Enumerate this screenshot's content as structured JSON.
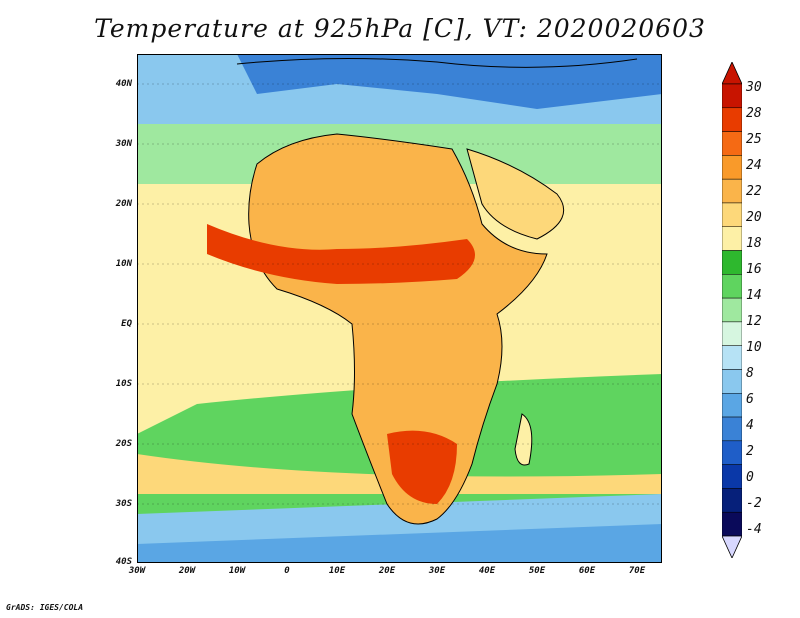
{
  "title": "Temperature at 925hPa [C], VT: 2020020603",
  "credit": "GrADS: IGES/COLA",
  "lat_labels": [
    "40N",
    "30N",
    "20N",
    "10N",
    "EQ",
    "10S",
    "20S",
    "30S",
    "40S"
  ],
  "lon_labels": [
    "30W",
    "20W",
    "10W",
    "0",
    "10E",
    "20E",
    "30E",
    "40E",
    "50E",
    "60E",
    "70E"
  ],
  "colorbar": {
    "labels": [
      "30",
      "28",
      "25",
      "24",
      "22",
      "20",
      "18",
      "16",
      "14",
      "12",
      "10",
      "8",
      "6",
      "4",
      "2",
      "0",
      "-2",
      "-4"
    ],
    "colors": [
      "#c81400",
      "#e83c00",
      "#f56a14",
      "#f99a2a",
      "#fab44a",
      "#fdd87a",
      "#fdf0a6",
      "#2eb82e",
      "#5fd45f",
      "#9fe89f",
      "#d6f6e0",
      "#b6e2f5",
      "#8ac8ee",
      "#5aa6e4",
      "#3a82d6",
      "#1f5ec8",
      "#0a38a8",
      "#06207a",
      "#0a0a5a"
    ],
    "max_color": "#c81400",
    "min_color": "#d8d8ff"
  },
  "map_colors": {
    "ocean_cold": "#5a9ee0",
    "ocean_cool": "#a8dcf2",
    "ocean_mild": "#5fd45f",
    "ocean_warm": "#fdf0a6",
    "land_warm": "#fab44a",
    "land_hot": "#f56a14",
    "land_hottest": "#e83c00"
  }
}
